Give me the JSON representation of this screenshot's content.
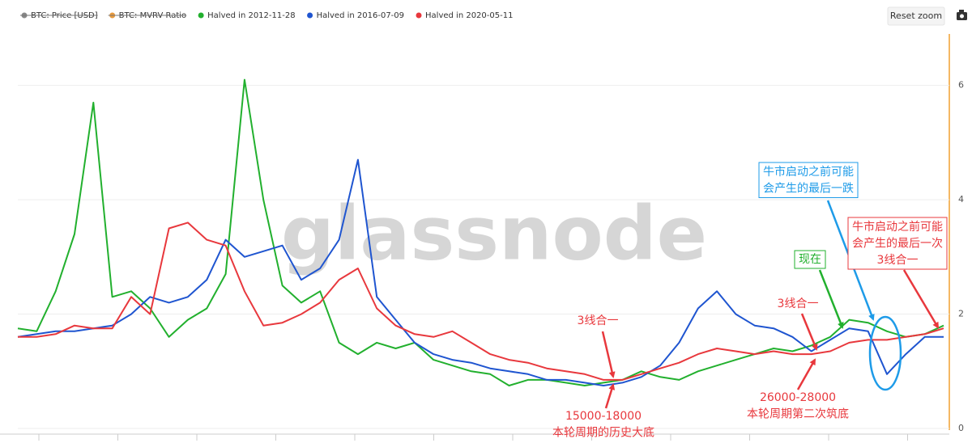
{
  "chart_data": {
    "type": "line",
    "watermark": "glassnode",
    "reset_button": "Reset zoom",
    "legend_hidden": [
      {
        "name": "BTC: Price [USD]",
        "color": "#888888"
      },
      {
        "name": "BTC: MVRV Ratio",
        "color": "#e89a3c"
      }
    ],
    "categories": [
      null,
      null,
      null,
      null,
      null,
      null,
      null,
      null,
      null,
      null,
      null,
      null,
      null,
      null,
      null,
      null,
      null,
      null,
      null,
      null,
      null,
      null,
      null,
      null,
      null,
      null,
      null,
      null,
      null,
      null,
      null,
      null,
      null,
      null,
      null,
      null,
      null,
      null,
      null,
      null,
      null,
      null,
      null,
      null,
      null,
      null,
      null,
      null,
      null,
      null
    ],
    "series": [
      {
        "name": "Halved in 2012-11-28",
        "color": "#22b02e",
        "values": [
          1.75,
          1.7,
          2.4,
          3.4,
          5.7,
          2.3,
          2.4,
          2.1,
          1.6,
          1.9,
          2.1,
          2.7,
          6.1,
          4.0,
          2.5,
          2.2,
          2.4,
          1.5,
          1.3,
          1.5,
          1.4,
          1.5,
          1.2,
          1.1,
          1.0,
          0.95,
          0.75,
          0.85,
          0.85,
          0.8,
          0.75,
          0.8,
          0.85,
          1.0,
          0.9,
          0.85,
          1.0,
          1.1,
          1.2,
          1.3,
          1.4,
          1.35,
          1.45,
          1.6,
          1.9,
          1.85,
          1.7,
          1.6,
          1.65,
          1.8
        ]
      },
      {
        "name": "Halved in 2016-07-09",
        "color": "#1f55d0",
        "values": [
          1.6,
          1.65,
          1.7,
          1.7,
          1.75,
          1.8,
          2.0,
          2.3,
          2.2,
          2.3,
          2.6,
          3.3,
          3.0,
          3.1,
          3.2,
          2.6,
          2.8,
          3.3,
          4.7,
          2.3,
          1.9,
          1.5,
          1.3,
          1.2,
          1.15,
          1.05,
          1.0,
          0.95,
          0.85,
          0.85,
          0.8,
          0.75,
          0.8,
          0.9,
          1.1,
          1.5,
          2.1,
          2.4,
          2.0,
          1.8,
          1.75,
          1.6,
          1.35,
          1.55,
          1.75,
          1.7,
          0.95,
          1.3,
          1.6,
          1.6
        ]
      },
      {
        "name": "Halved in 2020-05-11",
        "color": "#e8383d",
        "values": [
          1.6,
          1.6,
          1.65,
          1.8,
          1.75,
          1.75,
          2.3,
          2.0,
          3.5,
          3.6,
          3.3,
          3.2,
          2.4,
          1.8,
          1.85,
          2.0,
          2.2,
          2.6,
          2.8,
          2.1,
          1.8,
          1.65,
          1.6,
          1.7,
          1.5,
          1.3,
          1.2,
          1.15,
          1.05,
          1.0,
          0.95,
          0.85,
          0.85,
          0.95,
          1.05,
          1.15,
          1.3,
          1.4,
          1.35,
          1.3,
          1.35,
          1.3,
          1.3,
          1.35,
          1.5,
          1.55,
          1.55,
          1.6,
          1.65,
          1.75
        ]
      }
    ],
    "ylim": [
      0,
      6.9
    ],
    "yticks": [
      0,
      2,
      4,
      6
    ],
    "grid": true,
    "annotations": [
      {
        "lines": [
          "3线合一"
        ],
        "color": "#e8383d",
        "boxed": false
      },
      {
        "lines": [
          "15000-18000",
          "本轮周期的历史大底"
        ],
        "color": "#e8383d",
        "boxed": false
      },
      {
        "lines": [
          "3线合一"
        ],
        "color": "#e8383d",
        "boxed": false
      },
      {
        "lines": [
          "26000-28000",
          "本轮周期第二次筑底"
        ],
        "color": "#e8383d",
        "boxed": false
      },
      {
        "lines": [
          "现在"
        ],
        "color": "#22b02e",
        "boxed": true
      },
      {
        "lines": [
          "牛市启动之前可能",
          "会产生的最后一跌"
        ],
        "color": "#1e9be8",
        "boxed": true
      },
      {
        "lines": [
          "牛市启动之前可能",
          "会产生的最后一次",
          "3线合一"
        ],
        "color": "#e8383d",
        "boxed": true
      }
    ]
  }
}
